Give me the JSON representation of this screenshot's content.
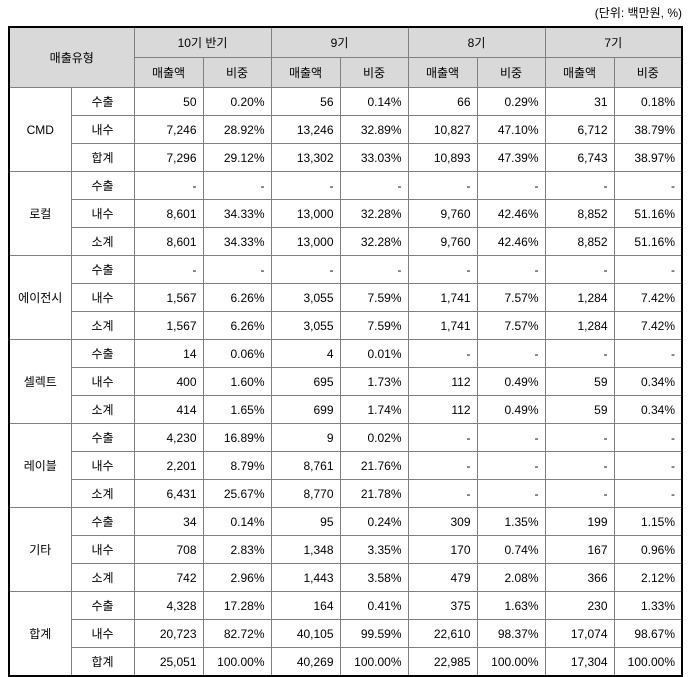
{
  "unit_label": "(단위: 백만원, %)",
  "table": {
    "corner_header": "매출유형",
    "period_headers": [
      "10기 반기",
      "9기",
      "8기",
      "7기"
    ],
    "sub_headers": [
      "매출액",
      "비중"
    ],
    "groups": [
      {
        "name": "CMD",
        "rows": [
          {
            "type": "수출",
            "values": [
              "50",
              "0.20%",
              "56",
              "0.14%",
              "66",
              "0.29%",
              "31",
              "0.18%"
            ]
          },
          {
            "type": "내수",
            "values": [
              "7,246",
              "28.92%",
              "13,246",
              "32.89%",
              "10,827",
              "47.10%",
              "6,712",
              "38.79%"
            ]
          },
          {
            "type": "합계",
            "values": [
              "7,296",
              "29.12%",
              "13,302",
              "33.03%",
              "10,893",
              "47.39%",
              "6,743",
              "38.97%"
            ]
          }
        ]
      },
      {
        "name": "로컬",
        "rows": [
          {
            "type": "수출",
            "values": [
              "-",
              "-",
              "-",
              "-",
              "-",
              "-",
              "-",
              "-"
            ]
          },
          {
            "type": "내수",
            "values": [
              "8,601",
              "34.33%",
              "13,000",
              "32.28%",
              "9,760",
              "42.46%",
              "8,852",
              "51.16%"
            ]
          },
          {
            "type": "소계",
            "values": [
              "8,601",
              "34.33%",
              "13,000",
              "32.28%",
              "9,760",
              "42.46%",
              "8,852",
              "51.16%"
            ]
          }
        ]
      },
      {
        "name": "에이전시",
        "rows": [
          {
            "type": "수출",
            "values": [
              "-",
              "-",
              "-",
              "-",
              "-",
              "-",
              "-",
              "-"
            ]
          },
          {
            "type": "내수",
            "values": [
              "1,567",
              "6.26%",
              "3,055",
              "7.59%",
              "1,741",
              "7.57%",
              "1,284",
              "7.42%"
            ]
          },
          {
            "type": "소계",
            "values": [
              "1,567",
              "6.26%",
              "3,055",
              "7.59%",
              "1,741",
              "7.57%",
              "1,284",
              "7.42%"
            ]
          }
        ]
      },
      {
        "name": "셀렉트",
        "rows": [
          {
            "type": "수출",
            "values": [
              "14",
              "0.06%",
              "4",
              "0.01%",
              "-",
              "-",
              "-",
              "-"
            ]
          },
          {
            "type": "내수",
            "values": [
              "400",
              "1.60%",
              "695",
              "1.73%",
              "112",
              "0.49%",
              "59",
              "0.34%"
            ]
          },
          {
            "type": "소계",
            "values": [
              "414",
              "1.65%",
              "699",
              "1.74%",
              "112",
              "0.49%",
              "59",
              "0.34%"
            ]
          }
        ]
      },
      {
        "name": "레이블",
        "rows": [
          {
            "type": "수출",
            "values": [
              "4,230",
              "16.89%",
              "9",
              "0.02%",
              "-",
              "-",
              "-",
              "-"
            ]
          },
          {
            "type": "내수",
            "values": [
              "2,201",
              "8.79%",
              "8,761",
              "21.76%",
              "-",
              "-",
              "-",
              "-"
            ]
          },
          {
            "type": "소계",
            "values": [
              "6,431",
              "25.67%",
              "8,770",
              "21.78%",
              "-",
              "-",
              "-",
              "-"
            ]
          }
        ]
      },
      {
        "name": "기타",
        "rows": [
          {
            "type": "수출",
            "values": [
              "34",
              "0.14%",
              "95",
              "0.24%",
              "309",
              "1.35%",
              "199",
              "1.15%"
            ]
          },
          {
            "type": "내수",
            "values": [
              "708",
              "2.83%",
              "1,348",
              "3.35%",
              "170",
              "0.74%",
              "167",
              "0.96%"
            ]
          },
          {
            "type": "소계",
            "values": [
              "742",
              "2.96%",
              "1,443",
              "3.58%",
              "479",
              "2.08%",
              "366",
              "2.12%"
            ]
          }
        ]
      },
      {
        "name": "합계",
        "rows": [
          {
            "type": "수출",
            "values": [
              "4,328",
              "17.28%",
              "164",
              "0.41%",
              "375",
              "1.63%",
              "230",
              "1.33%"
            ]
          },
          {
            "type": "내수",
            "values": [
              "20,723",
              "82.72%",
              "40,105",
              "99.59%",
              "22,610",
              "98.37%",
              "17,074",
              "98.67%"
            ]
          },
          {
            "type": "합계",
            "values": [
              "25,051",
              "100.00%",
              "40,269",
              "100.00%",
              "22,985",
              "100.00%",
              "17,304",
              "100.00%"
            ]
          }
        ]
      }
    ]
  },
  "colors": {
    "header_bg": "#d9d9d9",
    "grid_line": "#808080",
    "outer_border": "#000000"
  }
}
